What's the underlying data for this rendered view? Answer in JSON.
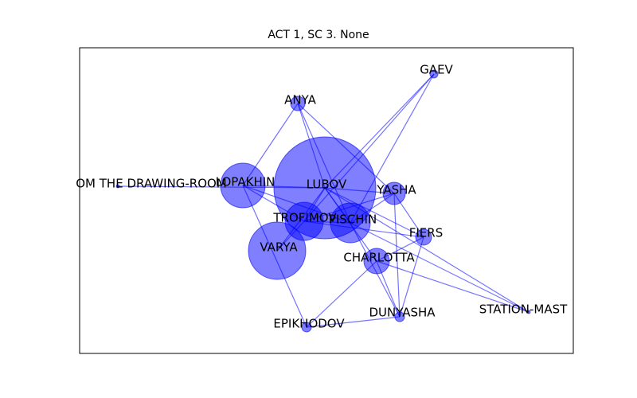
{
  "title": "ACT 1, SC 3. None",
  "colors": {
    "node": "#0000ff",
    "edge": "#0000ff",
    "frame": "#000000"
  },
  "nodes": [
    {
      "id": "lubov",
      "label": "LUBOV"
    },
    {
      "id": "varya",
      "label": "VARYA"
    },
    {
      "id": "lopakhin",
      "label": "LOPAKHIN"
    },
    {
      "id": "pischin",
      "label": "PISCHIN"
    },
    {
      "id": "trofimov",
      "label": "TROFIMOV"
    },
    {
      "id": "charlotta",
      "label": "CHARLOTTA"
    },
    {
      "id": "yasha",
      "label": "YASHA"
    },
    {
      "id": "fiers",
      "label": "FIERS"
    },
    {
      "id": "anya",
      "label": "ANYA"
    },
    {
      "id": "gaev",
      "label": "GAEV"
    },
    {
      "id": "dunyasha",
      "label": "DUNYASHA"
    },
    {
      "id": "epikhodov",
      "label": "EPIKHODOV"
    },
    {
      "id": "station_master",
      "label": "STATION-MAST"
    },
    {
      "id": "from_drawing_room",
      "label": "OM THE DRAWING-ROOM"
    }
  ],
  "edges": [
    [
      "lubov",
      "gaev"
    ],
    [
      "lubov",
      "anya"
    ],
    [
      "lubov",
      "yasha"
    ],
    [
      "lubov",
      "fiers"
    ],
    [
      "lubov",
      "trofimov"
    ],
    [
      "lubov",
      "pischin"
    ],
    [
      "lubov",
      "charlotta"
    ],
    [
      "lubov",
      "station_master"
    ],
    [
      "lubov",
      "from_drawing_room"
    ],
    [
      "lubov",
      "lopakhin"
    ],
    [
      "lubov",
      "varya"
    ],
    [
      "anya",
      "lopakhin"
    ],
    [
      "anya",
      "yasha"
    ],
    [
      "anya",
      "pischin"
    ],
    [
      "gaev",
      "trofimov"
    ],
    [
      "gaev",
      "pischin"
    ],
    [
      "lopakhin",
      "epikhodov"
    ],
    [
      "lopakhin",
      "pischin"
    ],
    [
      "lopakhin",
      "trofimov"
    ],
    [
      "trofimov",
      "pischin"
    ],
    [
      "trofimov",
      "varya"
    ],
    [
      "trofimov",
      "yasha"
    ],
    [
      "trofimov",
      "fiers"
    ],
    [
      "pischin",
      "yasha"
    ],
    [
      "pischin",
      "dunyasha"
    ],
    [
      "pischin",
      "station_master"
    ],
    [
      "yasha",
      "dunyasha"
    ],
    [
      "yasha",
      "fiers"
    ],
    [
      "fiers",
      "dunyasha"
    ],
    [
      "fiers",
      "charlotta"
    ],
    [
      "charlotta",
      "epikhodov"
    ],
    [
      "charlotta",
      "dunyasha"
    ],
    [
      "charlotta",
      "station_master"
    ],
    [
      "epikhodov",
      "dunyasha"
    ]
  ]
}
